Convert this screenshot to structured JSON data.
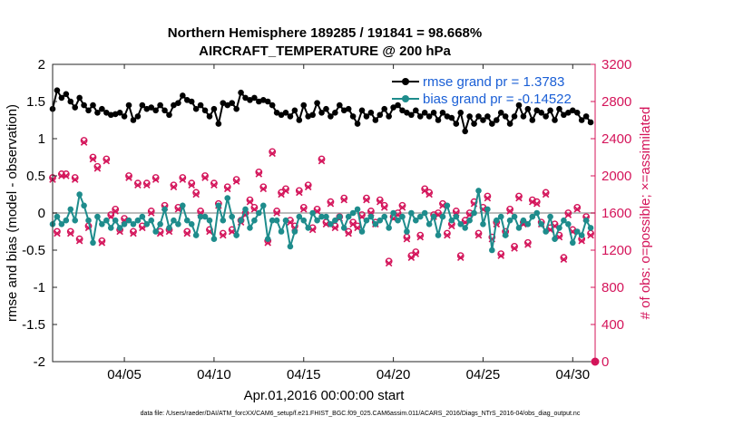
{
  "chart_data": {
    "type": "line",
    "title_line1": "Northern Hemisphere 189285 / 191841 = 98.668%",
    "title_line2": "AIRCRAFT_TEMPERATURE @ 200 hPa",
    "xlabel": "Apr.01,2016 00:00:00 start",
    "ylabel_left": "rmse and bias (model - observation)",
    "ylabel_right": "# of obs: o=possible; ×=assimilated",
    "footer": "data file: /Users/raeder/DAI/ATM_forcXX/CAM6_setup/f.e21.FHIST_BGC.f09_025.CAM6assim.011/ACARS_2016/Diags_NTrS_2016-04/obs_diag_output.nc",
    "xlim": [
      1,
      31.25
    ],
    "ylim_left": [
      -2,
      2
    ],
    "ylim_right": [
      0,
      3200
    ],
    "xticks": [
      5,
      10,
      15,
      20,
      25,
      30
    ],
    "xtick_labels": [
      "04/05",
      "04/10",
      "04/15",
      "04/20",
      "04/25",
      "04/30"
    ],
    "yticks_left": [
      -2,
      -1.5,
      -1,
      -0.5,
      0,
      0.5,
      1,
      1.5,
      2
    ],
    "ytick_labels_left": [
      "-2",
      "-1.5",
      "-1",
      "-0.5",
      "0",
      "0.5",
      "1",
      "1.5",
      "2"
    ],
    "yticks_right": [
      0,
      400,
      800,
      1200,
      1600,
      2000,
      2400,
      2800,
      3200
    ],
    "ytick_labels_right": [
      "0",
      "400",
      "800",
      "1200",
      "1600",
      "2000",
      "2400",
      "2800",
      "3200"
    ],
    "x": [
      1.0,
      1.25,
      1.5,
      1.75,
      2.0,
      2.25,
      2.5,
      2.75,
      3.0,
      3.25,
      3.5,
      3.75,
      4.0,
      4.25,
      4.5,
      4.75,
      5.0,
      5.25,
      5.5,
      5.75,
      6.0,
      6.25,
      6.5,
      6.75,
      7.0,
      7.25,
      7.5,
      7.75,
      8.0,
      8.25,
      8.5,
      8.75,
      9.0,
      9.25,
      9.5,
      9.75,
      10.0,
      10.25,
      10.5,
      10.75,
      11.0,
      11.25,
      11.5,
      11.75,
      12.0,
      12.25,
      12.5,
      12.75,
      13.0,
      13.25,
      13.5,
      13.75,
      14.0,
      14.25,
      14.5,
      14.75,
      15.0,
      15.25,
      15.5,
      15.75,
      16.0,
      16.25,
      16.5,
      16.75,
      17.0,
      17.25,
      17.5,
      17.75,
      18.0,
      18.25,
      18.5,
      18.75,
      19.0,
      19.25,
      19.5,
      19.75,
      20.0,
      20.25,
      20.5,
      20.75,
      21.0,
      21.25,
      21.5,
      21.75,
      22.0,
      22.25,
      22.5,
      22.75,
      23.0,
      23.25,
      23.5,
      23.75,
      24.0,
      24.25,
      24.5,
      24.75,
      25.0,
      25.25,
      25.5,
      25.75,
      26.0,
      26.25,
      26.5,
      26.75,
      27.0,
      27.25,
      27.5,
      27.75,
      28.0,
      28.25,
      28.5,
      28.75,
      29.0,
      29.25,
      29.5,
      29.75,
      30.0,
      30.25,
      30.5,
      30.75,
      31.0
    ],
    "series": [
      {
        "name": "rmse grand pr = 1.3783",
        "axis": "left",
        "color": "#000000",
        "values": [
          1.4,
          1.65,
          1.55,
          1.6,
          1.5,
          1.42,
          1.55,
          1.45,
          1.38,
          1.45,
          1.35,
          1.4,
          1.35,
          1.32,
          1.33,
          1.35,
          1.3,
          1.45,
          1.25,
          1.3,
          1.45,
          1.4,
          1.42,
          1.38,
          1.45,
          1.38,
          1.32,
          1.45,
          1.48,
          1.58,
          1.52,
          1.5,
          1.4,
          1.45,
          1.38,
          1.3,
          1.4,
          1.2,
          1.48,
          1.45,
          1.48,
          1.4,
          1.62,
          1.55,
          1.52,
          1.55,
          1.5,
          1.52,
          1.5,
          1.45,
          1.35,
          1.32,
          1.35,
          1.3,
          1.38,
          1.25,
          1.45,
          1.3,
          1.32,
          1.48,
          1.35,
          1.4,
          1.3,
          1.35,
          1.45,
          1.38,
          1.4,
          1.3,
          1.2,
          1.38,
          1.3,
          1.35,
          1.25,
          1.32,
          1.4,
          1.3,
          1.42,
          1.45,
          1.38,
          1.35,
          1.32,
          1.38,
          1.3,
          1.35,
          1.3,
          1.35,
          1.25,
          1.35,
          1.3,
          1.28,
          1.2,
          1.35,
          1.1,
          1.3,
          1.2,
          1.3,
          1.25,
          1.3,
          1.2,
          1.25,
          1.35,
          1.3,
          1.2,
          1.3,
          1.45,
          1.3,
          1.4,
          1.25,
          1.38,
          1.35,
          1.3,
          1.38,
          1.25,
          1.4,
          1.32,
          1.35,
          1.38,
          1.35,
          1.25,
          1.3,
          1.22
        ]
      },
      {
        "name": "bias grand pr = -0.14522",
        "axis": "left",
        "color": "#1e8c8c",
        "values": [
          -0.15,
          -0.05,
          -0.15,
          -0.1,
          0.05,
          -0.1,
          0.25,
          0.1,
          -0.1,
          -0.4,
          -0.05,
          -0.15,
          -0.1,
          -0.2,
          -0.1,
          -0.2,
          -0.15,
          -0.1,
          -0.15,
          -0.1,
          -0.05,
          -0.15,
          -0.1,
          -0.25,
          -0.15,
          0.05,
          -0.2,
          -0.1,
          -0.15,
          0.1,
          -0.1,
          -0.15,
          -0.3,
          -0.05,
          -0.05,
          -0.1,
          -0.35,
          0.1,
          -0.1,
          0.2,
          -0.05,
          -0.3,
          -0.1,
          0.05,
          -0.2,
          -0.1,
          0.0,
          0.1,
          -0.35,
          -0.1,
          -0.1,
          -0.25,
          -0.1,
          -0.45,
          -0.25,
          -0.05,
          -0.1,
          -0.2,
          0.0,
          -0.1,
          -0.05,
          -0.05,
          -0.15,
          -0.1,
          -0.05,
          -0.2,
          -0.05,
          0.0,
          0.05,
          -0.25,
          -0.1,
          -0.05,
          -0.15,
          -0.1,
          -0.05,
          -0.2,
          0.0,
          -0.1,
          -0.05,
          -0.25,
          0.0,
          -0.1,
          -0.05,
          0.0,
          -0.15,
          -0.05,
          -0.3,
          -0.05,
          0.1,
          -0.1,
          -0.05,
          -0.15,
          -0.2,
          -0.1,
          0.0,
          0.3,
          -0.15,
          0.05,
          -0.5,
          -0.1,
          -0.05,
          -0.3,
          -0.1,
          -0.05,
          -0.2,
          -0.1,
          -0.15,
          -0.05,
          0.0,
          -0.15,
          -0.25,
          -0.05,
          -0.35,
          -0.2,
          -0.1,
          -0.15,
          -0.4,
          -0.25,
          -0.3,
          -0.1,
          -0.2
        ]
      },
      {
        "name": "# of obs possible",
        "axis": "right",
        "color": "#d4145a",
        "marker": "circle",
        "values": [
          1980,
          1400,
          2020,
          2020,
          1400,
          1980,
          1320,
          2380,
          1460,
          2200,
          2100,
          1300,
          2180,
          1580,
          1640,
          1420,
          1540,
          2000,
          1400,
          1920,
          1460,
          1920,
          1620,
          1980,
          1400,
          1680,
          1420,
          1900,
          1660,
          1980,
          1400,
          1920,
          1820,
          1620,
          2000,
          1420,
          1920,
          1700,
          1380,
          1880,
          1420,
          1960,
          1520,
          1600,
          1740,
          1660,
          2040,
          1880,
          1300,
          2260,
          1620,
          1820,
          1860,
          1520,
          1460,
          1840,
          1660,
          1900,
          1440,
          1640,
          2180,
          1500,
          1720,
          1460,
          1560,
          1760,
          1400,
          1500,
          1460,
          1580,
          1760,
          1620,
          1500,
          1740,
          1680,
          1080,
          1560,
          1600,
          1680,
          1340,
          1140,
          1180,
          1360,
          1860,
          1820,
          1580,
          1600,
          1700,
          1380,
          1480,
          1620,
          1140,
          1520,
          1600,
          1720,
          1380,
          1660,
          1780,
          1340,
          1500,
          1160,
          1400,
          1640,
          1240,
          1780,
          1500,
          1280,
          1740,
          1720,
          1500,
          1820,
          1440,
          1480,
          1360,
          1120,
          1600,
          1420,
          1660,
          1320,
          1560,
          1380
        ]
      },
      {
        "name": "# of obs assimilated",
        "axis": "right",
        "color": "#d4145a",
        "marker": "x",
        "values": [
          1960,
          1380,
          2000,
          2000,
          1380,
          1960,
          1300,
          2360,
          1440,
          2180,
          2080,
          1280,
          2160,
          1560,
          1620,
          1400,
          1520,
          1980,
          1380,
          1900,
          1440,
          1900,
          1600,
          1960,
          1380,
          1660,
          1400,
          1880,
          1640,
          1960,
          1380,
          1900,
          1800,
          1600,
          1980,
          1400,
          1900,
          1680,
          1360,
          1860,
          1400,
          1940,
          1500,
          1580,
          1720,
          1640,
          2020,
          1860,
          1280,
          2240,
          1600,
          1800,
          1840,
          1500,
          1440,
          1820,
          1640,
          1880,
          1420,
          1620,
          2160,
          1480,
          1700,
          1440,
          1540,
          1740,
          1380,
          1480,
          1440,
          1560,
          1740,
          1600,
          1480,
          1720,
          1660,
          1060,
          1540,
          1580,
          1660,
          1320,
          1120,
          1160,
          1340,
          1840,
          1800,
          1560,
          1580,
          1680,
          1360,
          1460,
          1600,
          1120,
          1500,
          1580,
          1700,
          1360,
          1640,
          1760,
          1320,
          1480,
          1140,
          1380,
          1620,
          1220,
          1760,
          1480,
          1260,
          1720,
          1700,
          1480,
          1800,
          1420,
          1460,
          1340,
          1100,
          1580,
          1400,
          1640,
          1300,
          1540,
          1360
        ]
      }
    ],
    "extra_points": [
      {
        "series": "# of obs possible",
        "x": 31.25,
        "value": 0
      }
    ],
    "reference_line": {
      "axis": "left",
      "y": 0
    }
  }
}
